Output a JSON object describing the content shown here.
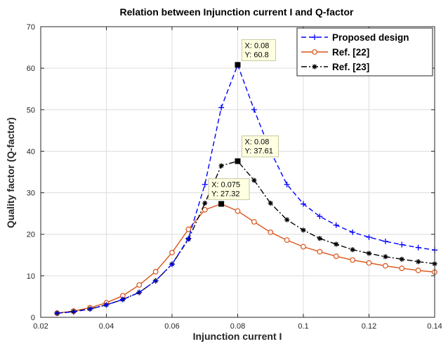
{
  "chart_data": {
    "type": "line",
    "title": "Relation between Injunction current I and Q-factor",
    "xlabel": "Injunction current I",
    "ylabel": "Quality factor (Q-factor)",
    "xlim": [
      0.02,
      0.14
    ],
    "ylim": [
      0,
      70
    ],
    "xticks": [
      "0.02",
      "0.04",
      "0.06",
      "0.08",
      "0.1",
      "0.12",
      "0.14"
    ],
    "yticks": [
      "0",
      "10",
      "20",
      "30",
      "40",
      "50",
      "60",
      "70"
    ],
    "grid": true,
    "legend_position": "top-right",
    "x": [
      0.025,
      0.03,
      0.035,
      0.04,
      0.045,
      0.05,
      0.055,
      0.06,
      0.065,
      0.07,
      0.075,
      0.08,
      0.085,
      0.09,
      0.095,
      0.1,
      0.105,
      0.11,
      0.115,
      0.12,
      0.125,
      0.13,
      0.135,
      0.14
    ],
    "series": [
      {
        "name": "Proposed design",
        "color": "#0000FF",
        "line_style": "dashed",
        "marker": "plus",
        "values": [
          1.0,
          1.3,
          2.0,
          3.0,
          4.3,
          6.0,
          8.8,
          12.8,
          19.0,
          32.0,
          50.5,
          60.8,
          50.0,
          40.0,
          32.0,
          27.3,
          24.3,
          22.2,
          20.5,
          19.3,
          18.3,
          17.5,
          16.8,
          16.2
        ]
      },
      {
        "name": "Ref. [22]",
        "color": "#D95319",
        "line_style": "solid",
        "marker": "circle",
        "values": [
          1.0,
          1.5,
          2.3,
          3.5,
          5.2,
          7.8,
          11.0,
          15.6,
          21.2,
          25.9,
          27.32,
          25.6,
          23.0,
          20.5,
          18.6,
          17.0,
          15.8,
          14.7,
          13.8,
          13.1,
          12.4,
          11.8,
          11.3,
          10.9
        ]
      },
      {
        "name": "Ref. [23]",
        "color": "#000000",
        "line_style": "dashdot",
        "marker": "asterisk",
        "values": [
          1.0,
          1.4,
          2.0,
          3.0,
          4.3,
          6.0,
          8.8,
          12.8,
          18.8,
          27.5,
          36.5,
          37.61,
          33.0,
          27.5,
          23.5,
          21.0,
          19.0,
          17.6,
          16.3,
          15.4,
          14.6,
          14.0,
          13.4,
          12.9
        ]
      }
    ],
    "datatips": [
      {
        "series": "Proposed design",
        "x": 0.08,
        "y": 60.8,
        "line1": "X: 0.08",
        "line2": "Y: 60.8"
      },
      {
        "series": "Ref. [23]",
        "x": 0.08,
        "y": 37.61,
        "line1": "X: 0.08",
        "line2": "Y: 37.61"
      },
      {
        "series": "Ref. [22]",
        "x": 0.075,
        "y": 27.32,
        "line1": "X: 0.075",
        "line2": "Y: 27.32"
      }
    ]
  }
}
